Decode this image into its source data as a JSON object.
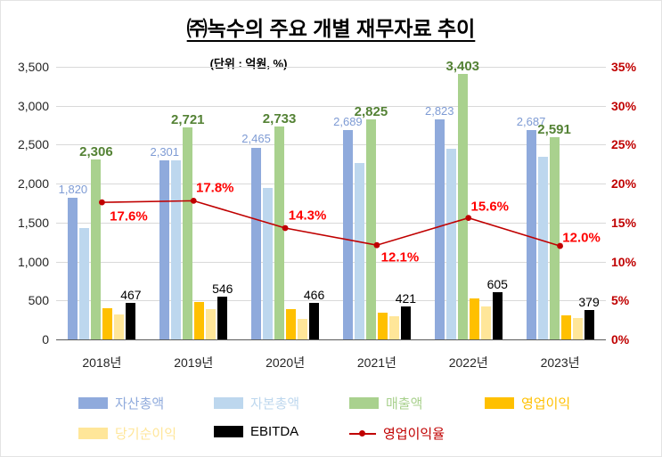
{
  "title": "㈜녹수의 주요 개별 재무자료 추이",
  "subtitle": "(단위 : 억원, %)",
  "chart_data": {
    "type": "bar+line-combo",
    "categories": [
      "2018년",
      "2019년",
      "2020년",
      "2021년",
      "2022년",
      "2023년"
    ],
    "series": [
      {
        "key": "assets-total",
        "name": "자산총액",
        "type": "bar",
        "color": "#8FAADC",
        "values": [
          1820,
          2301,
          2465,
          2689,
          2823,
          2687
        ],
        "labels": [
          "1,820",
          "2,301",
          "2,465",
          "2,689",
          "2,823",
          "2,687"
        ],
        "label_color": "#7E9BD4"
      },
      {
        "key": "equity-total",
        "name": "자본총액",
        "type": "bar",
        "color": "#BDD7EE",
        "values": [
          1430,
          2300,
          1950,
          2270,
          2450,
          2340
        ]
      },
      {
        "key": "revenue",
        "name": "매출액",
        "type": "bar",
        "color": "#A9D18E",
        "values": [
          2306,
          2721,
          2733,
          2825,
          3403,
          2591
        ],
        "labels": [
          "2,306",
          "2,721",
          "2,733",
          "2,825",
          "3,403",
          "2,591"
        ],
        "label_color": "#548235"
      },
      {
        "key": "operating-profit",
        "name": "영업이익",
        "type": "bar",
        "color": "#FFC000",
        "values": [
          406,
          484,
          391,
          342,
          531,
          311
        ]
      },
      {
        "key": "net-income",
        "name": "당기순이익",
        "type": "bar",
        "color": "#FFE699",
        "values": [
          320,
          390,
          260,
          300,
          420,
          280
        ]
      },
      {
        "key": "ebitda",
        "name": "EBITDA",
        "type": "bar",
        "color": "#000000",
        "values": [
          467,
          546,
          466,
          421,
          605,
          379
        ],
        "labels": [
          "467",
          "546",
          "466",
          "421",
          "605",
          "379"
        ],
        "label_color": "#000000"
      },
      {
        "key": "operating-margin",
        "name": "영업이익율",
        "type": "line",
        "axis": "right",
        "color": "#C00000",
        "values": [
          17.6,
          17.8,
          14.3,
          12.1,
          15.6,
          12.0
        ],
        "labels": [
          "17.6%",
          "17.8%",
          "14.3%",
          "12.1%",
          "15.6%",
          "12.0%"
        ],
        "label_color": "#FF0000"
      }
    ],
    "left_axis": {
      "min": 0,
      "max": 3500,
      "step": 500,
      "ticks": [
        "0",
        "500",
        "1,000",
        "1,500",
        "2,000",
        "2,500",
        "3,000",
        "3,500"
      ]
    },
    "right_axis": {
      "min": 0,
      "max": 35,
      "step": 5,
      "color": "#C00000",
      "ticks": [
        "0%",
        "5%",
        "10%",
        "15%",
        "20%",
        "25%",
        "30%",
        "35%"
      ]
    },
    "grid": true,
    "legend_position": "bottom"
  }
}
